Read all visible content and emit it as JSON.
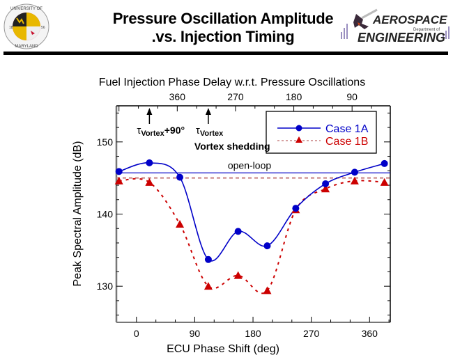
{
  "header": {
    "title_line1": "Pressure Oscillation Amplitude",
    "title_line2": ".vs. Injection Timing",
    "left_logo": {
      "icon": "university-of-maryland-seal-icon",
      "ring_text_top": "UNIVERSITY OF",
      "ring_text_bottom": "MARYLAND",
      "year_left": "18",
      "year_right": "56"
    },
    "right_logo": {
      "icon": "aerospace-engineering-logo-icon",
      "line1": "AEROSPACE",
      "line2": "Department of",
      "line3": "ENGINEERING"
    }
  },
  "colors": {
    "case1a": "#0000c8",
    "case1b": "#cc0000",
    "case1b_openloop": "#c88080",
    "axis": "#000000"
  },
  "chart_data": {
    "type": "line",
    "title": "Fuel Injection Phase Delay w.r.t. Pressure Oscillations",
    "xlabel": "ECU Phase Shift (deg)",
    "ylabel": "Peak Spectral Amplitude (dB)",
    "xlim": [
      -31,
      392
    ],
    "ylim": [
      125,
      155
    ],
    "x_ticks": [
      0,
      90,
      180,
      270,
      360
    ],
    "x_tick_labels": [
      "0",
      "90",
      "180",
      "270",
      "360"
    ],
    "y_ticks": [
      130,
      140,
      150
    ],
    "y_tick_labels": [
      "130",
      "140",
      "150"
    ],
    "top_axis": {
      "label": "Fuel Injection Phase Delay w.r.t. Pressure Oscillations",
      "ticks_at_bottom_x": [
        63,
        153,
        243,
        333
      ],
      "tick_labels": [
        "360",
        "270",
        "180",
        "90"
      ]
    },
    "grid": false,
    "legend": {
      "position": "top-right",
      "entries": [
        "Case 1A",
        "Case 1B"
      ]
    },
    "series": [
      {
        "name": "Case 1A",
        "marker": "circle",
        "line": "solid",
        "x": [
          -27,
          20,
          67,
          111,
          157,
          202,
          246,
          292,
          337,
          383
        ],
        "y": [
          145.9,
          147.1,
          145.1,
          133.7,
          137.6,
          135.6,
          140.8,
          144.2,
          145.8,
          147.0
        ]
      },
      {
        "name": "Case 1B",
        "marker": "triangle",
        "line": "dotted",
        "x": [
          -27,
          20,
          67,
          111,
          157,
          202,
          246,
          292,
          337,
          383
        ],
        "y": [
          144.6,
          144.4,
          138.6,
          130.0,
          131.5,
          129.4,
          140.6,
          143.5,
          144.6,
          144.4
        ]
      }
    ],
    "reference_lines": [
      {
        "name": "open-loop Case 1A",
        "y": 145.7,
        "label": "open-loop"
      },
      {
        "name": "open-loop Case 1B",
        "y": 145.0,
        "label": ""
      }
    ],
    "annotations": [
      {
        "text_main": "τ",
        "text_sub": "Vortex",
        "text_suffix": "+90°",
        "x": 20,
        "arrow": true
      },
      {
        "text_main": "τ",
        "text_sub": "Vortex",
        "text_suffix": "",
        "x": 111,
        "arrow": true
      },
      {
        "text": "Vortex shedding",
        "x": 111
      }
    ]
  }
}
